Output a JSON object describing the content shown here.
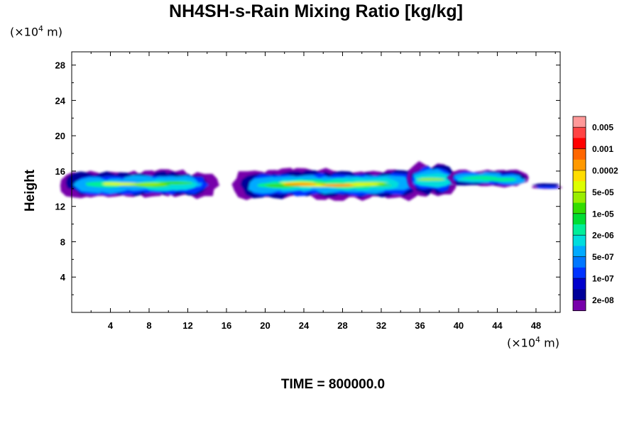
{
  "chart_data": {
    "type": "heatmap",
    "title": "NH4SH-s-Rain Mixing Ratio [kg/kg]",
    "xlabel": "",
    "ylabel": "Height",
    "x_unit_label": "(×10⁴ m)",
    "y_unit_label": "(×10⁴ m)",
    "xlim": [
      0,
      50.5
    ],
    "ylim": [
      0,
      29.5
    ],
    "x_ticks": [
      "4",
      "8",
      "12",
      "16",
      "20",
      "24",
      "28",
      "32",
      "36",
      "40",
      "44",
      "48"
    ],
    "y_ticks": [
      "4",
      "8",
      "12",
      "16",
      "20",
      "24",
      "28"
    ],
    "grid": false,
    "legend_position": "right",
    "colorbar": {
      "labels": [
        "0.005",
        "0.001",
        "0.0002",
        "5e-05",
        "1e-05",
        "2e-06",
        "5e-07",
        "1e-07",
        "2e-08"
      ],
      "colors": [
        "#ff9999",
        "#ff4444",
        "#ff0000",
        "#ff6600",
        "#ff9900",
        "#ffdd00",
        "#ddff00",
        "#99ee00",
        "#33dd00",
        "#00dd33",
        "#00ee99",
        "#00dddd",
        "#00aaff",
        "#0077ff",
        "#0033ff",
        "#0000cc",
        "#000099",
        "#7700aa"
      ]
    },
    "cloud_bands": [
      {
        "x_start": 0.0,
        "x_end": 14.0,
        "y_bottom": 13.0,
        "y_top": 16.0,
        "peak": "5e-05"
      },
      {
        "x_start": 17.8,
        "x_end": 35.5,
        "y_bottom": 12.8,
        "y_top": 16.2,
        "peak": "0.0002"
      },
      {
        "x_start": 35.5,
        "x_end": 39.3,
        "y_bottom": 13.2,
        "y_top": 17.0,
        "peak": "1e-05"
      },
      {
        "x_start": 39.8,
        "x_end": 46.8,
        "y_bottom": 14.2,
        "y_top": 16.1,
        "peak": "2e-06"
      },
      {
        "x_start": 48.0,
        "x_end": 50.0,
        "y_bottom": 14.1,
        "y_top": 14.5,
        "peak": "1e-07"
      }
    ]
  },
  "footer": {
    "time_label": "TIME = 800000.0"
  }
}
